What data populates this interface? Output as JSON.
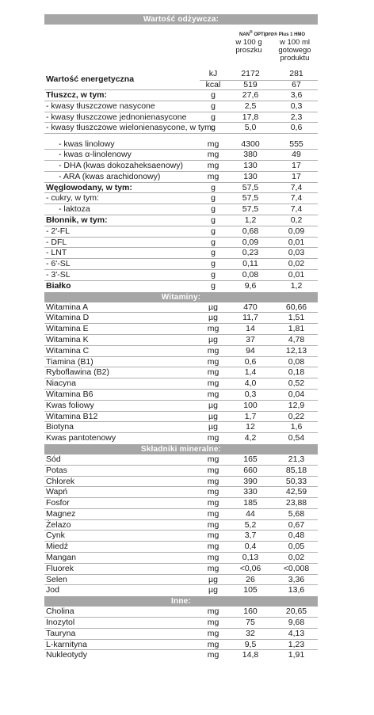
{
  "title": "Wartość odżywcza:",
  "brand": {
    "pre": "NAN",
    "reg": "®",
    "mid": " OPTI",
    "pro": "pro",
    "post": "® Plus 1 HMO"
  },
  "columns": {
    "per100g": "w 100 g\nproszku",
    "per100ml": "w 100 ml\ngotowego\nproduktu"
  },
  "energy": {
    "label": "Wartość energetyczna",
    "kj": {
      "unit": "kJ",
      "v1": "2172",
      "v2": "281"
    },
    "kcal": {
      "unit": "kcal",
      "v1": "519",
      "v2": "67"
    }
  },
  "main_rows": [
    {
      "label": "Tłuszcz, w tym:",
      "unit": "g",
      "v1": "27,6",
      "v2": "3,6",
      "bold": true
    },
    {
      "label": "- kwasy tłuszczowe nasycone",
      "unit": "g",
      "v1": "2,5",
      "v2": "0,3"
    },
    {
      "label": "- kwasy tłuszczowe jednonienasycone",
      "unit": "g",
      "v1": "17,8",
      "v2": "2,3"
    },
    {
      "label": "- kwasy tłuszczowe wielonienasycone, w tym:",
      "unit": "g",
      "v1": "5,0",
      "v2": "0,6"
    },
    {
      "label": "- kwas linolowy",
      "unit": "mg",
      "v1": "4300",
      "v2": "555",
      "indent": true,
      "tall": true
    },
    {
      "label": "- kwas α-linolenowy",
      "unit": "mg",
      "v1": "380",
      "v2": "49",
      "indent": true
    },
    {
      "label": "- DHA (kwas dokozaheksaenowy)",
      "unit": "mg",
      "v1": "130",
      "v2": "17",
      "indent": true
    },
    {
      "label": "- ARA (kwas arachidonowy)",
      "unit": "mg",
      "v1": "130",
      "v2": "17",
      "indent": true
    },
    {
      "label": "Węglowodany, w tym:",
      "unit": "g",
      "v1": "57,5",
      "v2": "7,4",
      "bold": true
    },
    {
      "label": "- cukry, w tym:",
      "unit": "g",
      "v1": "57,5",
      "v2": "7,4"
    },
    {
      "label": "- laktoza",
      "unit": "g",
      "v1": "57,5",
      "v2": "7,4",
      "indent": true
    },
    {
      "label": "Błonnik, w tym:",
      "unit": "g",
      "v1": "1,2",
      "v2": "0,2",
      "bold": true
    },
    {
      "label": "- 2'-FL",
      "unit": "g",
      "v1": "0,68",
      "v2": "0,09"
    },
    {
      "label": "- DFL",
      "unit": "g",
      "v1": "0,09",
      "v2": "0,01"
    },
    {
      "label": "- LNT",
      "unit": "g",
      "v1": "0,23",
      "v2": "0,03"
    },
    {
      "label": "- 6'-SL",
      "unit": "g",
      "v1": "0,11",
      "v2": "0,02"
    },
    {
      "label": "- 3'-SL",
      "unit": "g",
      "v1": "0,08",
      "v2": "0,01"
    },
    {
      "label": "Białko",
      "unit": "g",
      "v1": "9,6",
      "v2": "1,2",
      "bold": true,
      "last": true
    }
  ],
  "sections": [
    {
      "title": "Witaminy:",
      "rows": [
        {
          "label": "Witamina A",
          "unit": "µg",
          "v1": "470",
          "v2": "60,66"
        },
        {
          "label": "Witamina D",
          "unit": "µg",
          "v1": "11,7",
          "v2": "1,51"
        },
        {
          "label": "Witamina E",
          "unit": "mg",
          "v1": "14",
          "v2": "1,81"
        },
        {
          "label": "Witamina K",
          "unit": "µg",
          "v1": "37",
          "v2": "4,78"
        },
        {
          "label": "Witamina C",
          "unit": "mg",
          "v1": "94",
          "v2": "12,13"
        },
        {
          "label": "Tiamina (B1)",
          "unit": "mg",
          "v1": "0,6",
          "v2": "0,08"
        },
        {
          "label": "Ryboflawina (B2)",
          "unit": "mg",
          "v1": "1,4",
          "v2": "0,18"
        },
        {
          "label": "Niacyna",
          "unit": "mg",
          "v1": "4,0",
          "v2": "0,52"
        },
        {
          "label": "Witamina B6",
          "unit": "mg",
          "v1": "0,3",
          "v2": "0,04"
        },
        {
          "label": "Kwas foliowy",
          "unit": "µg",
          "v1": "100",
          "v2": "12,9"
        },
        {
          "label": "Witamina B12",
          "unit": "µg",
          "v1": "1,7",
          "v2": "0,22"
        },
        {
          "label": "Biotyna",
          "unit": "µg",
          "v1": "12",
          "v2": "1,6"
        },
        {
          "label": "Kwas pantotenowy",
          "unit": "mg",
          "v1": "4,2",
          "v2": "0,54"
        }
      ]
    },
    {
      "title": "Składniki mineralne:",
      "rows": [
        {
          "label": "Sód",
          "unit": "mg",
          "v1": "165",
          "v2": "21,3"
        },
        {
          "label": "Potas",
          "unit": "mg",
          "v1": "660",
          "v2": "85,18"
        },
        {
          "label": "Chlorek",
          "unit": "mg",
          "v1": "390",
          "v2": "50,33"
        },
        {
          "label": "Wapń",
          "unit": "mg",
          "v1": "330",
          "v2": "42,59"
        },
        {
          "label": "Fosfor",
          "unit": "mg",
          "v1": "185",
          "v2": "23,88"
        },
        {
          "label": "Magnez",
          "unit": "mg",
          "v1": "44",
          "v2": "5,68"
        },
        {
          "label": "Żelazo",
          "unit": "mg",
          "v1": "5,2",
          "v2": "0,67"
        },
        {
          "label": "Cynk",
          "unit": "mg",
          "v1": "3,7",
          "v2": "0,48"
        },
        {
          "label": "Miedź",
          "unit": "mg",
          "v1": "0,4",
          "v2": "0,05"
        },
        {
          "label": "Mangan",
          "unit": "mg",
          "v1": "0,13",
          "v2": "0,02"
        },
        {
          "label": "Fluorek",
          "unit": "mg",
          "v1": "<0,06",
          "v2": "<0,008"
        },
        {
          "label": "Selen",
          "unit": "µg",
          "v1": "26",
          "v2": "3,36"
        },
        {
          "label": "Jod",
          "unit": "µg",
          "v1": "105",
          "v2": "13,6"
        }
      ]
    },
    {
      "title": "Inne:",
      "rows": [
        {
          "label": "Cholina",
          "unit": "mg",
          "v1": "160",
          "v2": "20,65"
        },
        {
          "label": "Inozytol",
          "unit": "mg",
          "v1": "75",
          "v2": "9,68"
        },
        {
          "label": "Tauryna",
          "unit": "mg",
          "v1": "32",
          "v2": "4,13"
        },
        {
          "label": "L-karnityna",
          "unit": "mg",
          "v1": "9,5",
          "v2": "1,23"
        },
        {
          "label": "Nukleotydy",
          "unit": "mg",
          "v1": "14,8",
          "v2": "1,91"
        }
      ]
    }
  ]
}
